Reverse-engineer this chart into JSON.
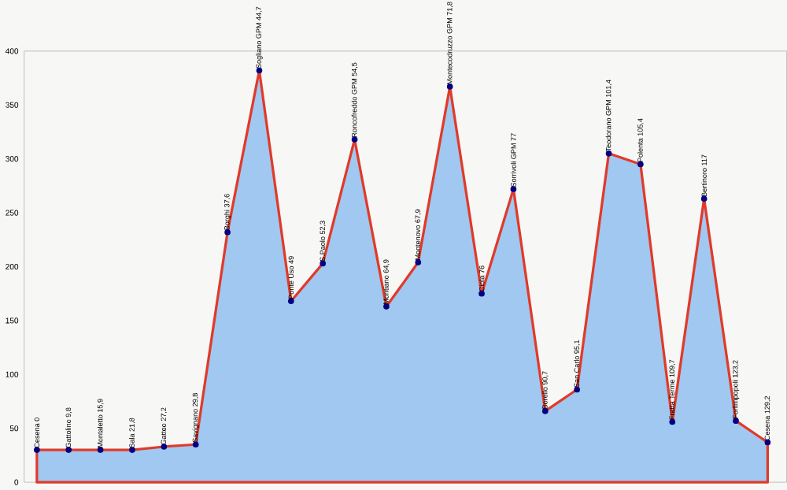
{
  "chart_data": {
    "type": "area",
    "categories": [
      "Cesena 0",
      "Gattolino 9,8",
      "Montaletto 15,9",
      "Sala 21,8",
      "Gatteo 27,2",
      "Savignano 29,8",
      "Borghi 37,6",
      "Sogliano GPM 44,7",
      "Ponte Uso 49",
      "S.Paolo 52,3",
      "Roncofreddo GPM 54,5",
      "Montiano 64,9",
      "Montenovo 67,9",
      "Montecodruzzo GPM 71,8",
      "Ciola 76",
      "Sorrivoli GPM 77",
      "Borello 90,7",
      "San Carlo 95,1",
      "Teodorano GPM 101,4",
      "Polenta 105,4",
      "Fratta Terme 109,7",
      "Bertinoro 117",
      "Forlimpopoli 123,2",
      "Cesena 129,2"
    ],
    "series": [
      {
        "color": "#a0c8f0",
        "values": [
          30,
          30,
          30,
          30,
          33,
          35,
          232,
          382,
          168,
          203,
          318,
          163,
          204,
          367,
          175,
          272,
          66,
          86,
          305,
          295,
          56,
          263,
          57,
          37
        ]
      }
    ],
    "ylim": [
      0,
      400
    ],
    "yticks": [
      0,
      50,
      100,
      150,
      200,
      250,
      300,
      350,
      400
    ],
    "marker": "circle",
    "line_style": "solid",
    "grid": false,
    "tick_labels": "y"
  }
}
